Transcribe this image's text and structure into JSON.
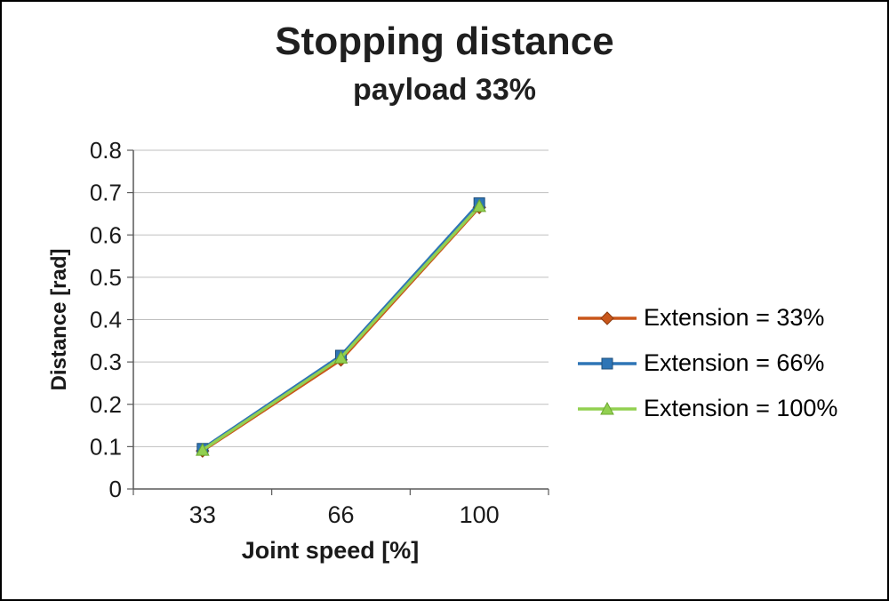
{
  "chart_data": {
    "type": "line",
    "title": "Stopping distance",
    "subtitle": "payload 33%",
    "xlabel": "Joint speed [%]",
    "ylabel": "Distance [rad]",
    "categories": [
      "33",
      "66",
      "100"
    ],
    "series": [
      {
        "name": "Extension = 33%",
        "marker": "diamond",
        "color": "#C9561A",
        "edge": "#8B3A0E",
        "values": [
          0.09,
          0.305,
          0.665
        ]
      },
      {
        "name": "Extension = 66%",
        "marker": "square",
        "color": "#2E75B6",
        "edge": "#1F4E79",
        "values": [
          0.095,
          0.315,
          0.675
        ]
      },
      {
        "name": "Extension = 100%",
        "marker": "triangle",
        "color": "#92D050",
        "edge": "#6BA82F",
        "values": [
          0.092,
          0.31,
          0.668
        ]
      }
    ],
    "ylim": [
      0,
      0.8
    ],
    "ytick_step": 0.1,
    "ytick_labels": [
      "0",
      "0.1",
      "0.2",
      "0.3",
      "0.4",
      "0.5",
      "0.6",
      "0.7",
      "0.8"
    ],
    "grid": true,
    "legend_position": "right",
    "colors": {
      "grid": "#BFBFBF",
      "axis": "#595959",
      "tick_text": "#1a1a1a",
      "title_text": "#1f1f1f"
    }
  }
}
